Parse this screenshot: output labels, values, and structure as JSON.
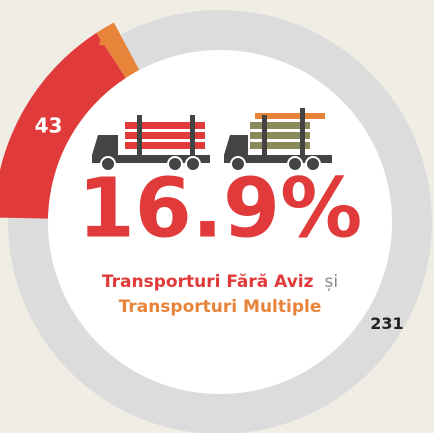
{
  "chart_data": {
    "type": "donut",
    "categories": [
      "Other",
      "Transporturi Fără Aviz",
      "Transporturi Multiple"
    ],
    "values": [
      231,
      43,
      4
    ],
    "colors": [
      "#dcdcdc",
      "#e03a3a",
      "#e8833a"
    ],
    "value_label_colors": [
      "#222222",
      "#ffffff",
      "#e8833a"
    ],
    "center_label": "16.9%",
    "caption": [
      {
        "text": "Transporturi Fără Aviz",
        "color": "#e03a3a"
      },
      {
        "text": "și",
        "color": "#888888"
      },
      {
        "text": "Transporturi Multiple",
        "color": "#e8833a"
      }
    ]
  }
}
